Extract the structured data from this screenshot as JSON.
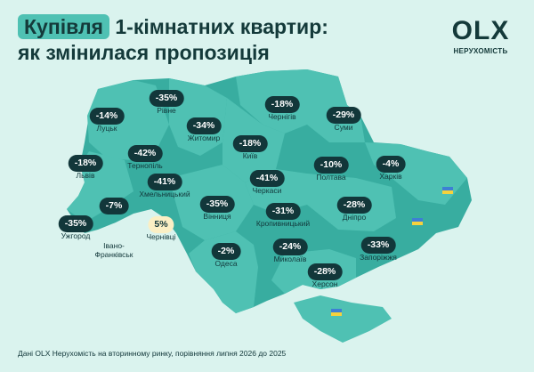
{
  "header": {
    "title_highlight": "Купівля",
    "title_line1_rest": "1-кімнатних квартир:",
    "title_line2": "як змінилася пропозиція"
  },
  "logo": {
    "mark": "OLX",
    "subtitle": "НЕРУХОМІСТЬ"
  },
  "colors": {
    "background": "#daf3ee",
    "map_light": "#4fc1b3",
    "map_dark": "#38ada0",
    "pill_negative": "#12373a",
    "pill_positive": "#fbefc4",
    "flag_blue": "#3d7fd4",
    "flag_yellow": "#f5d23c"
  },
  "regions": [
    {
      "change": "-35%",
      "city": "Рівне"
    },
    {
      "change": "-14%",
      "city": "Луцьк"
    },
    {
      "change": "-34%",
      "city": "Житомир"
    },
    {
      "change": "-18%",
      "city": "Чернігів"
    },
    {
      "change": "-29%",
      "city": "Суми"
    },
    {
      "change": "-42%",
      "city": "Тернопіль"
    },
    {
      "change": "-18%",
      "city": "Київ"
    },
    {
      "change": "-18%",
      "city": "Львів"
    },
    {
      "change": "-10%",
      "city": "Полтава"
    },
    {
      "change": "-4%",
      "city": "Харків"
    },
    {
      "change": "-41%",
      "city": "Хмельницький"
    },
    {
      "change": "-41%",
      "city": "Черкаси"
    },
    {
      "change": "-7%",
      "city": "Івано-\nФранківськ"
    },
    {
      "change": "-35%",
      "city": "Вінниця"
    },
    {
      "change": "-31%",
      "city": "Кропивницький"
    },
    {
      "change": "-28%",
      "city": "Дніпро"
    },
    {
      "change": "-35%",
      "city": "Ужгород"
    },
    {
      "change": "5%",
      "city": "Чернівці"
    },
    {
      "change": "-33%",
      "city": "Запоріжжя"
    },
    {
      "change": "-2%",
      "city": "Одеса"
    },
    {
      "change": "-24%",
      "city": "Миколаїв"
    },
    {
      "change": "-28%",
      "city": "Херсон"
    }
  ],
  "footnote": "Дані OLX Нерухомість на вторинному ринку, порівняння липня 2026 до 2025"
}
